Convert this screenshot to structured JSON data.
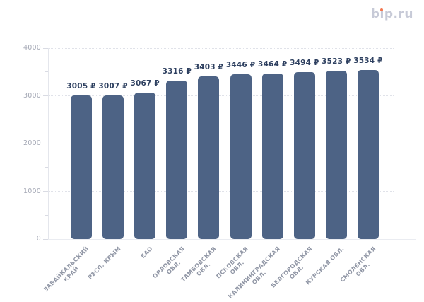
{
  "logo": {
    "text": "bip.ru",
    "part_b": "b",
    "part_i_base": "ı",
    "part_rest": "p.ru",
    "text_color": "#c7cad7",
    "dot_color": "#f3764f"
  },
  "chart_data": {
    "type": "bar",
    "title": "",
    "xlabel": "",
    "ylabel": "",
    "categories": [
      "ЗАБАЙКАЛЬСКИЙ КРАЙ",
      "РЕСП. КРЫМ",
      "ЕАО",
      "ОРЛОВСКАЯ ОБЛ.",
      "ТАМБОВСКАЯ ОБЛ.",
      "ПСКОВСКАЯ ОБЛ.",
      "КАЛИНИНГРАДСКАЯ ОБЛ.",
      "БЕЛГОРОДСКАЯ ОБЛ.",
      "КУРСКАЯ ОБЛ.",
      "СМОЛЕНСКАЯ ОБЛ."
    ],
    "category_lines": [
      [
        "ЗАБАЙКАЛЬСКИЙ",
        "КРАЙ"
      ],
      [
        "РЕСП. КРЫМ"
      ],
      [
        "ЕАО"
      ],
      [
        "ОРЛОВСКАЯ",
        "ОБЛ."
      ],
      [
        "ТАМБОВСКАЯ",
        "ОБЛ."
      ],
      [
        "ПСКОВСКАЯ",
        "ОБЛ."
      ],
      [
        "КАЛИНИНГРАДСКАЯ",
        "ОБЛ."
      ],
      [
        "БЕЛГОРОДСКАЯ",
        "ОБЛ."
      ],
      [
        "КУРСКАЯ ОБЛ."
      ],
      [
        "СМОЛЕНСКАЯ",
        "ОБЛ."
      ]
    ],
    "values": [
      3005,
      3007,
      3067,
      3316,
      3403,
      3446,
      3464,
      3494,
      3523,
      3534
    ],
    "data_labels": [
      "3005 ₽",
      "3007 ₽",
      "3067 ₽",
      "3316 ₽",
      "3403 ₽",
      "3446 ₽",
      "3464 ₽",
      "3494 ₽",
      "3523 ₽",
      "3534 ₽"
    ],
    "value_suffix": "₽",
    "ylim": [
      0,
      4000
    ],
    "yticks": [
      0,
      1000,
      2000,
      3000,
      4000
    ],
    "minor_yticks": [
      500,
      1500,
      2500,
      3500
    ],
    "grid": "horizontal-dotted-at-major-ticks",
    "legend": "none",
    "bar_color": "#4d6385",
    "value_label_color": "#2e4060",
    "axis_tick_label_color": "#a4a8b5",
    "category_label_color": "#9096a5"
  }
}
